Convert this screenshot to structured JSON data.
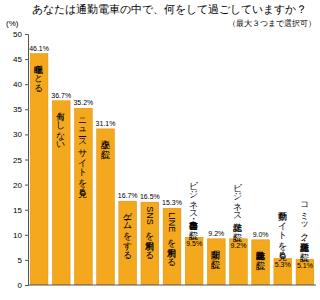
{
  "chart_data": {
    "type": "bar",
    "title": "あなたは通勤電車の中で、何をして過ごしていますか？",
    "subtitle": "（最大３つまで選択可）",
    "y_label": "(%)",
    "categories": [
      "睡眠をとる",
      "何もしない",
      "ニュースサイトを見る",
      "小説を読む",
      "ゲームをする",
      "SNSを利用する",
      "LINEを利用する",
      "ビジネス書・自己啓発本を読む",
      "新聞を読む",
      "ビジネス雑誌を読む",
      "趣味雑誌を読む",
      "動画サイトを見る",
      "コミック雑誌・漫画を読む"
    ],
    "values": [
      46.1,
      36.7,
      35.2,
      31.1,
      16.7,
      16.5,
      15.3,
      9.5,
      9.2,
      9.2,
      9.0,
      5.3,
      5.1
    ],
    "value_labels": [
      "46.1%",
      "36.7%",
      "35.2%",
      "31.1%",
      "16.7%",
      "16.5%",
      "15.3%",
      "9.5%",
      "9.2%",
      "9.2%",
      "9.0%",
      "5.3%",
      "5.1%"
    ],
    "color": "#f4a81d",
    "ylim": [
      0,
      50
    ],
    "yticks": [
      0,
      5,
      10,
      15,
      20,
      25,
      30,
      35,
      40,
      45,
      50
    ],
    "grid": false,
    "data_labels": true,
    "tick_labels": "y"
  }
}
